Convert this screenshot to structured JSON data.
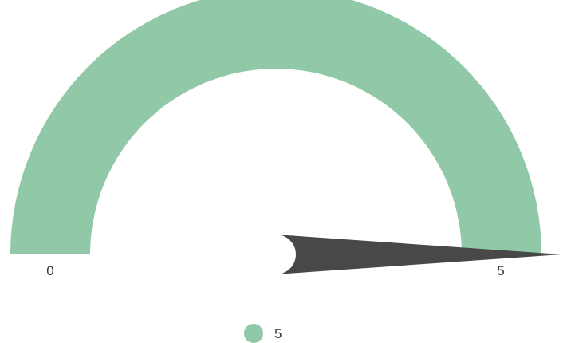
{
  "chart_data": {
    "type": "gauge",
    "min": 0,
    "max": 5,
    "value": 5,
    "min_label": "0",
    "max_label": "5",
    "legend": [
      {
        "label": "5",
        "color": "#90c8a8"
      }
    ],
    "band_color": "#90c8a8",
    "needle_color": "#484848"
  }
}
